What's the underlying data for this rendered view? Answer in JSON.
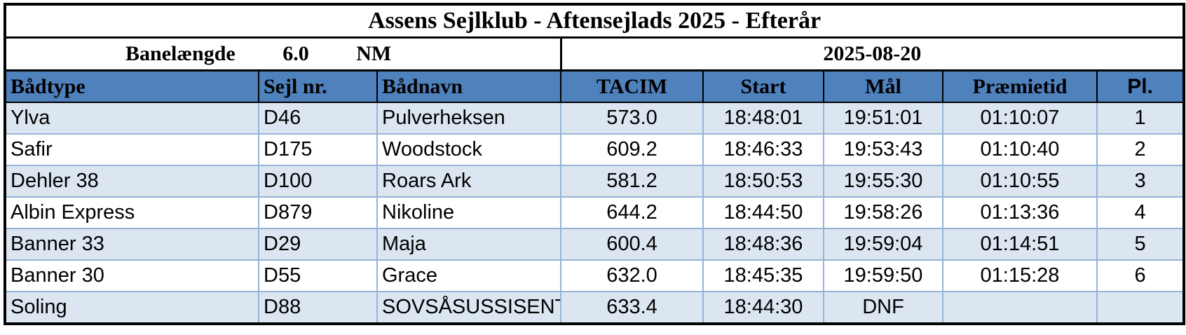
{
  "header": {
    "title": "Assens Sejlklub - Aftensejlads 2025 - Efterår",
    "course_label": "Banelængde",
    "course_length": "6.0",
    "course_unit": "NM",
    "date": "2025-08-20"
  },
  "table": {
    "columns": [
      "Bådtype",
      "Sejl nr.",
      "Bådnavn",
      "TACIM",
      "Start",
      "Mål",
      "Præmietid",
      "Pl."
    ],
    "rows": [
      [
        "Ylva",
        "D46",
        "Pulverheksen",
        "573.0",
        "18:48:01",
        "19:51:01",
        "01:10:07",
        "1"
      ],
      [
        "Safir",
        "D175",
        "Woodstock",
        "609.2",
        "18:46:33",
        "19:53:43",
        "01:10:40",
        "2"
      ],
      [
        "Dehler 38",
        "D100",
        "Roars Ark",
        "581.2",
        "18:50:53",
        "19:55:30",
        "01:10:55",
        "3"
      ],
      [
        "Albin Express",
        "D879",
        "Nikoline",
        "644.2",
        "18:44:50",
        "19:58:26",
        "01:13:36",
        "4"
      ],
      [
        "Banner 33",
        "D29",
        "Maja",
        "600.4",
        "18:48:36",
        "19:59:04",
        "01:14:51",
        "5"
      ],
      [
        "Banner 30",
        "D55",
        "Grace",
        "632.0",
        "18:45:35",
        "19:59:50",
        "01:15:28",
        "6"
      ],
      [
        "Soling",
        "D88",
        "SOVSÅSUSSISENT",
        "633.4",
        "18:44:30",
        "DNF",
        null,
        null
      ]
    ]
  }
}
